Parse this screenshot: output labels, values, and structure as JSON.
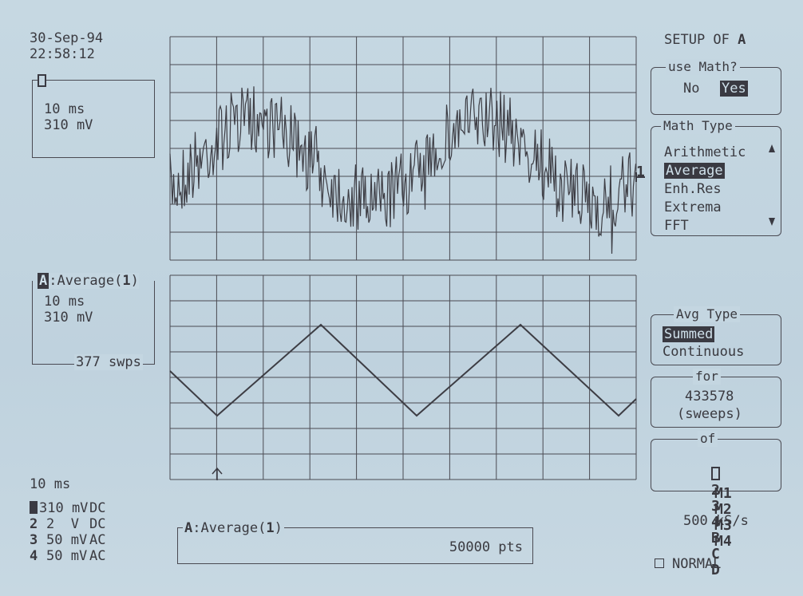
{
  "header": {
    "date": "30-Sep-94",
    "time": "22:58:12"
  },
  "trace1": {
    "channel": "1",
    "timebase": "10 ms",
    "volts": "310 mV"
  },
  "traceA": {
    "label": "A",
    "func": ":Average(",
    "func_ch": "1",
    "func_close": ")",
    "timebase": "10 ms",
    "volts": "310 mV",
    "sweeps": "377 swps"
  },
  "grid_marker": "1",
  "bottom_left": {
    "timebase": "10 ms",
    "channels": [
      {
        "num": "1",
        "volts": "310 mV",
        "coupling": "DC"
      },
      {
        "num": "2",
        "volts": "2  V",
        "coupling": "DC"
      },
      {
        "num": "3",
        "volts": "50 mV",
        "coupling": "AC"
      },
      {
        "num": "4",
        "volts": "50 mV",
        "coupling": "AC"
      }
    ]
  },
  "bottom_box": {
    "label": "A",
    "func": ":Average(",
    "func_ch": "1",
    "func_close": ")",
    "points": "50000 pts"
  },
  "menu": {
    "title": "SETUP OF",
    "title_ch": "A",
    "use_math": {
      "legend": "use Math?",
      "no": "No",
      "yes": "Yes"
    },
    "math_type": {
      "legend": "Math Type",
      "items": [
        "Arithmetic",
        "Average",
        "Enh.Res",
        "Extrema",
        "FFT"
      ],
      "selected": "Average"
    },
    "avg_type": {
      "legend": "Avg Type",
      "items": [
        "Summed",
        "Continuous"
      ],
      "selected": "Summed"
    },
    "for": {
      "legend": "for",
      "value": "433578",
      "unit": "(sweeps)"
    },
    "of": {
      "legend": "of",
      "row1": [
        "1",
        "2",
        "3",
        "4",
        "B",
        "C",
        "D"
      ],
      "row2": [
        "M1",
        "M2",
        "M3",
        "M4"
      ]
    },
    "sample_rate": "500 kS/s",
    "trigger_mode": "NORMAL"
  },
  "colors": {
    "background": "#c3d5e0",
    "ink": "#3a3a42",
    "grid": "#4a4a52"
  }
}
